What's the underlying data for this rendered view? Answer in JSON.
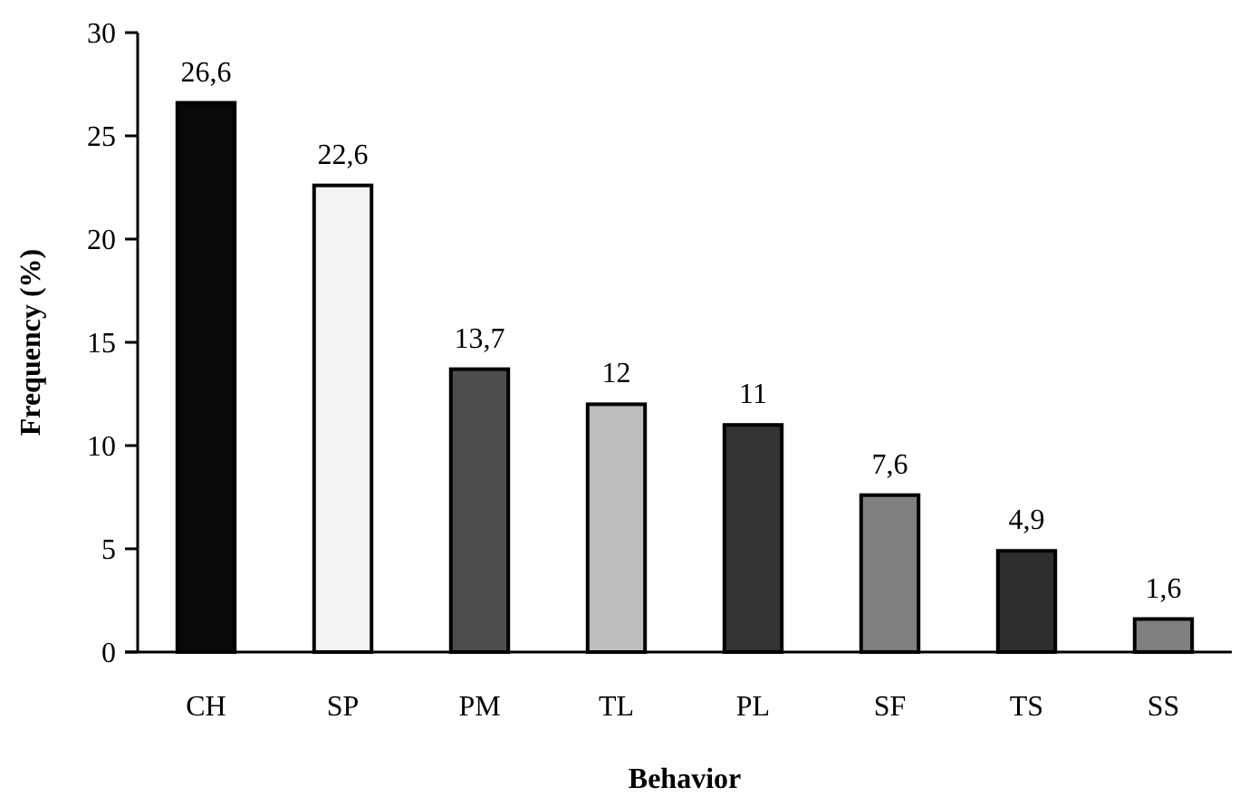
{
  "chart_data": {
    "type": "bar",
    "xlabel": "Behavior",
    "ylabel": "Frequency (%)",
    "categories": [
      "CH",
      "SP",
      "PM",
      "TL",
      "PL",
      "SF",
      "TS",
      "SS"
    ],
    "values": [
      26.6,
      22.6,
      13.7,
      12,
      11,
      7.6,
      4.9,
      1.6
    ],
    "value_labels": [
      "26,6",
      "22,6",
      "13,7",
      "12",
      "11",
      "7,6",
      "4,9",
      "1,6"
    ],
    "colors": [
      "#080808",
      "#f2f2f2",
      "#4d4d4d",
      "#bdbdbd",
      "#333333",
      "#7f7f7f",
      "#2e2e2e",
      "#7f7f7f"
    ],
    "ylim": [
      0,
      30
    ],
    "yticks": [
      0,
      5,
      10,
      15,
      20,
      25,
      30
    ],
    "grid": false
  }
}
